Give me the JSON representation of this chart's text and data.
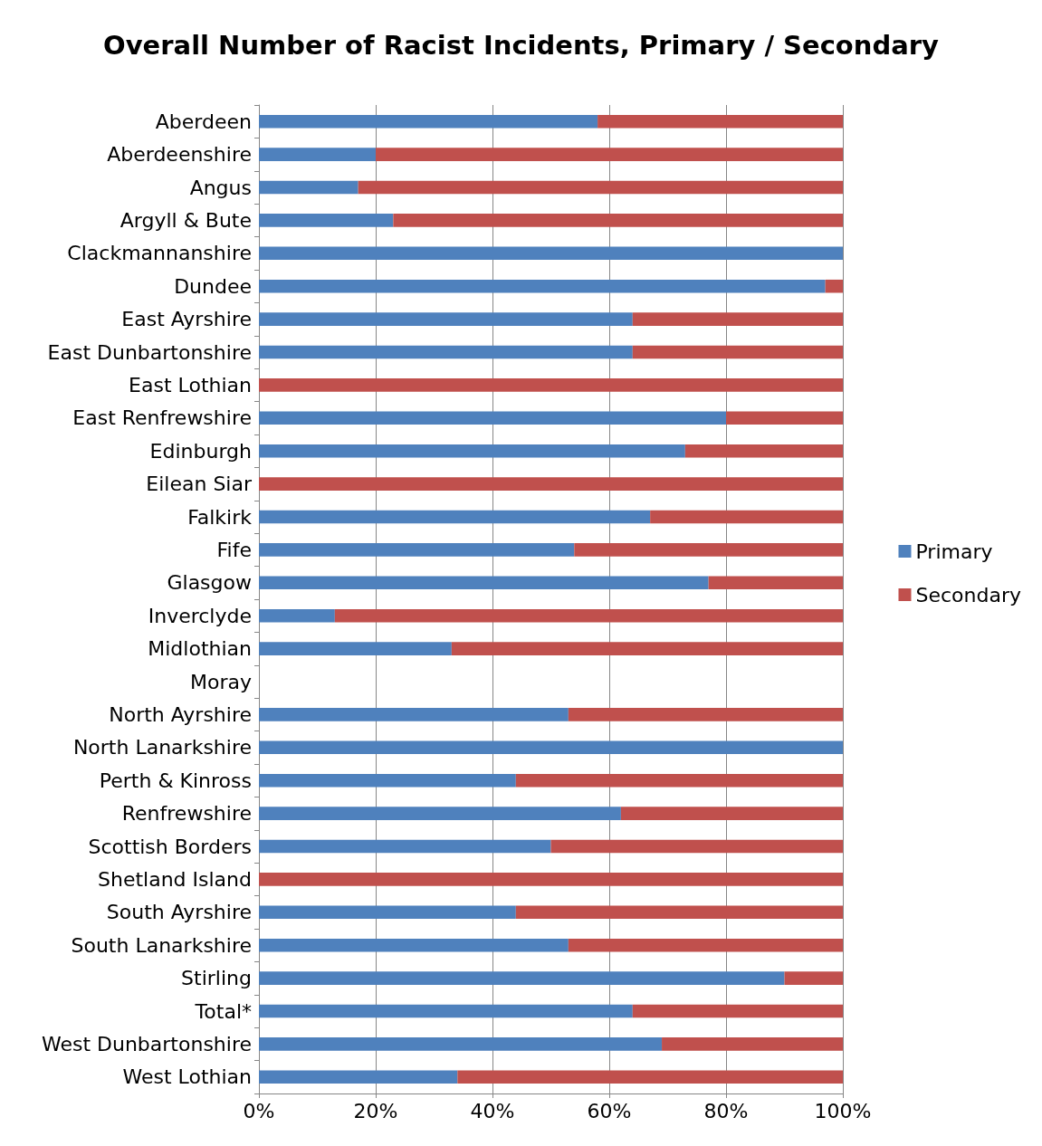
{
  "chart_data": {
    "type": "bar",
    "orientation": "horizontal",
    "stacked": true,
    "title": "Overall Number of Racist Incidents, Primary / Secondary",
    "categories": [
      "Aberdeen",
      "Aberdeenshire",
      "Angus",
      "Argyll & Bute",
      "Clackmannanshire",
      "Dundee",
      "East Ayrshire",
      "East Dunbartonshire",
      "East Lothian",
      "East Renfrewshire",
      "Edinburgh",
      "Eilean Siar",
      "Falkirk",
      "Fife",
      "Glasgow",
      "Inverclyde",
      "Midlothian",
      "Moray",
      "North Ayrshire",
      "North Lanarkshire",
      "Perth & Kinross",
      "Renfrewshire",
      "Scottish Borders",
      "Shetland Island",
      "South Ayrshire",
      "South Lanarkshire",
      "Stirling",
      "Total*",
      "West Dunbartonshire",
      "West Lothian"
    ],
    "series": [
      {
        "name": "Primary",
        "color": "#4f81bd",
        "values": [
          58,
          20,
          17,
          23,
          100,
          97,
          64,
          64,
          0,
          80,
          73,
          0,
          67,
          54,
          77,
          13,
          33,
          null,
          53,
          100,
          44,
          62,
          50,
          0,
          44,
          53,
          90,
          64,
          69,
          34
        ]
      },
      {
        "name": "Secondary",
        "color": "#c0504d",
        "values": [
          42,
          80,
          83,
          77,
          0,
          3,
          36,
          36,
          100,
          20,
          27,
          100,
          33,
          46,
          23,
          87,
          67,
          null,
          47,
          0,
          56,
          38,
          50,
          100,
          56,
          47,
          10,
          36,
          31,
          66
        ]
      }
    ],
    "xlim": [
      0,
      100
    ],
    "xticks": [
      {
        "value": 0,
        "label": "0%"
      },
      {
        "value": 20,
        "label": "20%"
      },
      {
        "value": 40,
        "label": "40%"
      },
      {
        "value": 60,
        "label": "60%"
      },
      {
        "value": 80,
        "label": "80%"
      },
      {
        "value": 100,
        "label": "100%"
      }
    ],
    "grid": "x",
    "legend": "right"
  }
}
